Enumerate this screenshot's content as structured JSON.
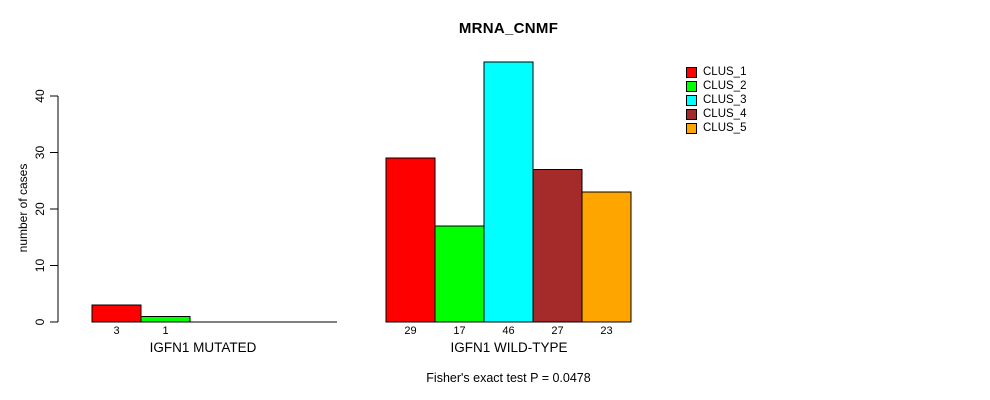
{
  "title": "MRNA_CNMF",
  "chart_data": {
    "type": "bar",
    "title": "MRNA_CNMF",
    "ylabel": "number of cases",
    "xlabel": "",
    "annotation": "Fisher's exact test P = 0.0478",
    "yticks": [
      0,
      10,
      20,
      30,
      40
    ],
    "ylim": [
      0,
      46
    ],
    "grid": false,
    "legend_position": "right",
    "series_colors": [
      "#FF0000",
      "#00FF00",
      "#00FFFF",
      "#A52A2A",
      "#FFA500"
    ],
    "groups": [
      {
        "label": "IGFN1 MUTATED",
        "values": [
          3,
          1,
          0,
          0,
          0
        ],
        "bar_labels": [
          "3",
          "1",
          "",
          "",
          ""
        ]
      },
      {
        "label": "IGFN1 WILD-TYPE",
        "values": [
          29,
          17,
          46,
          27,
          23
        ],
        "bar_labels": [
          "29",
          "17",
          "46",
          "27",
          "23"
        ]
      }
    ],
    "legend": [
      {
        "label": "CLUS_1",
        "color": "#FF0000"
      },
      {
        "label": "CLUS_2",
        "color": "#00FF00"
      },
      {
        "label": "CLUS_3",
        "color": "#00FFFF"
      },
      {
        "label": "CLUS_4",
        "color": "#A52A2A"
      },
      {
        "label": "CLUS_5",
        "color": "#FFA500"
      }
    ],
    "axis_color": "#000000",
    "text_color": "#000000",
    "background_color": "#FFFFFF"
  }
}
